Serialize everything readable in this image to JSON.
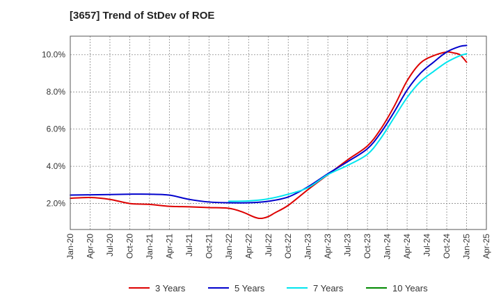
{
  "chart_data": {
    "type": "line",
    "title": "[3657]  Trend of StDev of ROE",
    "xlabel": "",
    "ylabel": "",
    "x_ticks": [
      "Jan-20",
      "Apr-20",
      "Jul-20",
      "Oct-20",
      "Jan-21",
      "Apr-21",
      "Jul-21",
      "Oct-21",
      "Jan-22",
      "Apr-22",
      "Jul-22",
      "Oct-22",
      "Jan-23",
      "Apr-23",
      "Jul-23",
      "Oct-23",
      "Jan-24",
      "Apr-24",
      "Jul-24",
      "Oct-24",
      "Jan-25",
      "Apr-25"
    ],
    "y_ticks": [
      "2.0%",
      "4.0%",
      "6.0%",
      "8.0%",
      "10.0%"
    ],
    "ylim": [
      0.6,
      11.0
    ],
    "grid": true,
    "legend_position": "bottom",
    "series": [
      {
        "name": "3 Years",
        "color": "#dd0000",
        "values": [
          [
            "Jan-20",
            2.28
          ],
          [
            "Apr-20",
            2.32
          ],
          [
            "Jul-20",
            2.22
          ],
          [
            "Oct-20",
            2.0
          ],
          [
            "Jan-21",
            1.95
          ],
          [
            "Apr-21",
            1.85
          ],
          [
            "Jul-21",
            1.82
          ],
          [
            "Oct-21",
            1.78
          ],
          [
            "Jan-22",
            1.74
          ],
          [
            "Mar-22",
            1.55
          ],
          [
            "May-22",
            1.25
          ],
          [
            "Jun-22",
            1.2
          ],
          [
            "Jul-22",
            1.3
          ],
          [
            "Aug-22",
            1.5
          ],
          [
            "Oct-22",
            1.9
          ],
          [
            "Jan-23",
            2.75
          ],
          [
            "Apr-23",
            3.55
          ],
          [
            "Jul-23",
            4.35
          ],
          [
            "Oct-23",
            5.1
          ],
          [
            "Dec-23",
            6.0
          ],
          [
            "Feb-24",
            7.2
          ],
          [
            "Apr-24",
            8.6
          ],
          [
            "Jun-24",
            9.55
          ],
          [
            "Aug-24",
            9.95
          ],
          [
            "Oct-24",
            10.15
          ],
          [
            "Nov-24",
            10.1
          ],
          [
            "Dec-24",
            10.0
          ],
          [
            "Jan-25",
            9.6
          ]
        ]
      },
      {
        "name": "5 Years",
        "color": "#0000cc",
        "values": [
          [
            "Jan-20",
            2.45
          ],
          [
            "Jul-20",
            2.48
          ],
          [
            "Oct-20",
            2.5
          ],
          [
            "Jan-21",
            2.5
          ],
          [
            "Apr-21",
            2.45
          ],
          [
            "Jul-21",
            2.22
          ],
          [
            "Oct-21",
            2.08
          ],
          [
            "Jan-22",
            2.04
          ],
          [
            "Apr-22",
            2.04
          ],
          [
            "Jul-22",
            2.12
          ],
          [
            "Oct-22",
            2.35
          ],
          [
            "Jan-23",
            2.9
          ],
          [
            "Apr-23",
            3.6
          ],
          [
            "Jul-23",
            4.25
          ],
          [
            "Oct-23",
            4.95
          ],
          [
            "Dec-23",
            5.8
          ],
          [
            "Feb-24",
            6.9
          ],
          [
            "Apr-24",
            8.1
          ],
          [
            "Jun-24",
            9.0
          ],
          [
            "Aug-24",
            9.6
          ],
          [
            "Oct-24",
            10.15
          ],
          [
            "Dec-24",
            10.45
          ],
          [
            "Jan-25",
            10.5
          ]
        ]
      },
      {
        "name": "7 Years",
        "color": "#00e5ee",
        "values": [
          [
            "Jan-22",
            2.12
          ],
          [
            "Apr-22",
            2.14
          ],
          [
            "Jul-22",
            2.25
          ],
          [
            "Oct-22",
            2.5
          ],
          [
            "Jan-23",
            2.85
          ],
          [
            "Apr-23",
            3.55
          ],
          [
            "Jul-23",
            4.05
          ],
          [
            "Oct-23",
            4.65
          ],
          [
            "Dec-23",
            5.5
          ],
          [
            "Feb-24",
            6.6
          ],
          [
            "Apr-24",
            7.7
          ],
          [
            "Jun-24",
            8.55
          ],
          [
            "Aug-24",
            9.1
          ],
          [
            "Oct-24",
            9.6
          ],
          [
            "Dec-24",
            9.95
          ],
          [
            "Jan-25",
            10.05
          ]
        ]
      },
      {
        "name": "10 Years",
        "color": "#008800",
        "values": []
      }
    ]
  }
}
